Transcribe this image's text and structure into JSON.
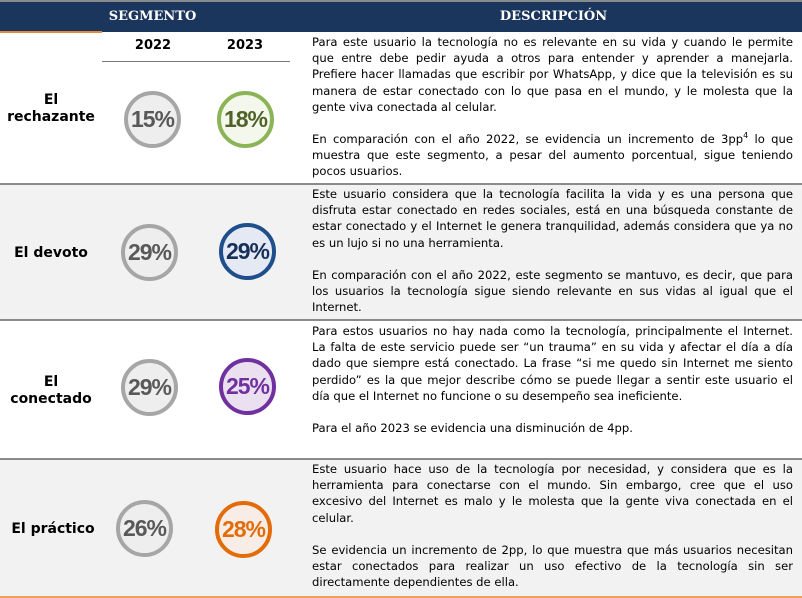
{
  "header": {
    "segment_label": "SEGMENTO",
    "description_label": "DESCRIPCIÓN"
  },
  "years": [
    "2022",
    "2023"
  ],
  "rows": [
    {
      "segment": "El rechazante",
      "segment_line1": "El",
      "segment_line2": "rechazante",
      "value_2022": "15%",
      "value_2023": "18%",
      "color_2023": "#8cb356",
      "fill_2023": "#f3f7ec",
      "text_2023": "#4f6228",
      "paragraph1": "Para este usuario la tecnología no es relevante en su vida y cuando le permite que entre debe pedir ayuda a otros para entender y aprender a manejarla. Prefiere hacer llamadas que escribir por WhatsApp, y dice que la televisión es su manera de estar conectado con lo que pasa en el mundo, y le molesta que la gente viva conectada al celular.",
      "paragraph2_a": "En comparación con el año 2022, se evidencia un incremento de 3pp",
      "paragraph2_sup": "4",
      "paragraph2_b": " lo que muestra que este segmento, a pesar del aumento porcentual, sigue teniendo pocos usuarios."
    },
    {
      "segment": "El devoto",
      "value_2022": "29%",
      "value_2023": "29%",
      "color_2023": "#1f4e8c",
      "fill_2023": "#e4e9f3",
      "text_2023": "#17305a",
      "paragraph1": "Este usuario considera que la tecnología facilita la vida y es una persona que disfruta estar conectado en redes sociales, está en una búsqueda constante de estar conectado y el Internet le genera tranquilidad, además considera que ya no es un lujo si no una herramienta.",
      "paragraph2": "En comparación con el año 2022, este segmento se mantuvo, es decir, que para los usuarios la tecnología sigue siendo relevante en sus vidas al igual que el Internet."
    },
    {
      "segment": "El conectado",
      "segment_line1": "El",
      "segment_line2": "conectado",
      "value_2022": "29%",
      "value_2023": "25%",
      "color_2023": "#7030a0",
      "fill_2023": "#ebe0f0",
      "text_2023": "#7030a0",
      "paragraph1": "Para estos usuarios no hay nada como la tecnología, principalmente el Internet. La falta de este servicio puede ser “un trauma” en su vida y afectar el día a día dado que siempre está conectado. La frase “si me quedo sin Internet me siento perdido” es la que mejor describe cómo se puede llegar a sentir este usuario el día que el Internet no funcione o su desempeño sea ineficiente.",
      "paragraph2": "Para el año 2023 se evidencia una disminución de 4pp."
    },
    {
      "segment": "El práctico",
      "value_2022": "26%",
      "value_2023": "28%",
      "color_2023": "#e36c0a",
      "fill_2023": "#f7ede6",
      "text_2023": "#e36c0a",
      "paragraph1": "Este usuario hace uso de la tecnología por necesidad, y considera que es la herramienta para conectarse con el mundo. Sin embargo, cree que el uso excesivo del Internet es malo y le molesta que la gente viva conectada en el celular.",
      "paragraph2": "Se evidencia un incremento de 2pp, lo que muestra que más usuarios necesitan estar conectados para realizar un uso efectivo de la tecnología sin ser directamente dependientes de ella."
    }
  ],
  "colors": {
    "header_bg": "#1b365d",
    "accent_orange": "#e3893a",
    "circle_2022_border": "#a6a6a6",
    "circle_2022_text": "#595959",
    "row_alt_bg": "#f2f2f2"
  }
}
